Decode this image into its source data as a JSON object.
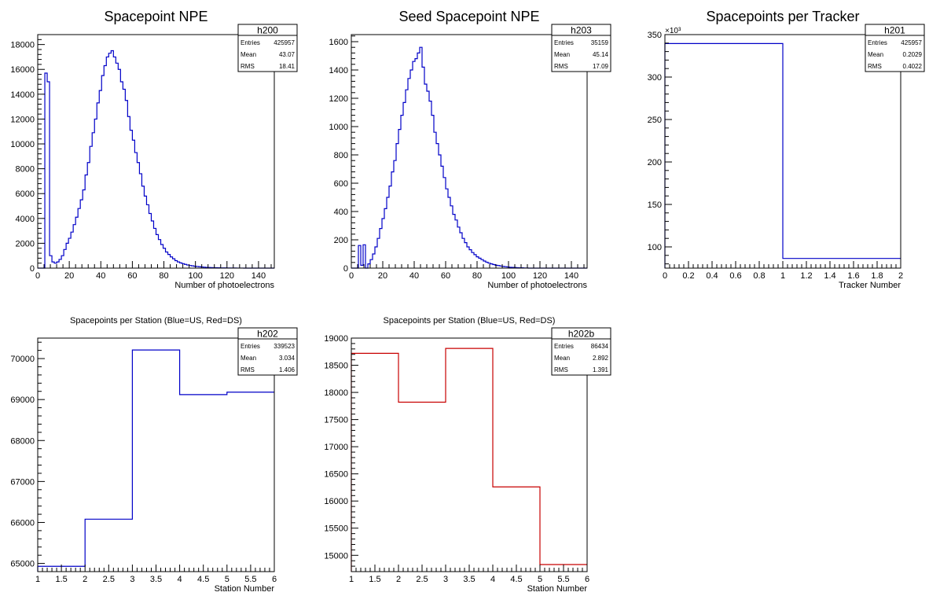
{
  "chart_data": [
    {
      "type": "histogram",
      "title": "Spacepoint NPE",
      "xlabel": "Number of photoelectrons",
      "ylabel": "",
      "xlim": [
        0,
        150
      ],
      "ylim": [
        0,
        18800
      ],
      "xticks": [
        0,
        20,
        40,
        60,
        80,
        100,
        120,
        140
      ],
      "yticks": [
        0,
        2000,
        4000,
        6000,
        8000,
        10000,
        12000,
        14000,
        16000,
        18000
      ],
      "line_color": "#0000c8",
      "bins": {
        "start": 0,
        "width": 1.5,
        "values": [
          0,
          0,
          0,
          15700,
          15000,
          1000,
          500,
          400,
          500,
          700,
          1000,
          1500,
          2000,
          2400,
          2900,
          3500,
          4100,
          4800,
          5500,
          6300,
          7500,
          8500,
          9800,
          10900,
          12000,
          13300,
          14300,
          15500,
          16300,
          17000,
          17300,
          17500,
          17000,
          16500,
          16000,
          15000,
          14400,
          13500,
          12200,
          11100,
          10300,
          9300,
          8500,
          7600,
          6600,
          5800,
          5100,
          4400,
          3800,
          3200,
          2700,
          2300,
          1900,
          1600,
          1300,
          1100,
          900,
          750,
          600,
          500,
          420,
          360,
          300,
          250,
          210,
          180,
          150,
          130,
          110,
          90,
          75,
          60,
          50,
          40,
          35,
          30,
          25,
          20,
          18,
          15,
          12,
          10,
          8,
          6,
          5,
          4,
          3,
          2,
          2,
          1,
          0,
          0,
          0,
          0,
          0,
          0,
          0,
          0,
          0,
          0
        ]
      },
      "stats": {
        "name": "h200",
        "rows": [
          {
            "label": "Entries",
            "value": "425957"
          },
          {
            "label": "Mean",
            "value": "43.07"
          },
          {
            "label": "RMS",
            "value": "18.41"
          }
        ]
      }
    },
    {
      "type": "histogram",
      "title": "Seed Spacepoint NPE",
      "xlabel": "Number of photoelectrons",
      "ylabel": "",
      "xlim": [
        0,
        150
      ],
      "ylim": [
        0,
        1650
      ],
      "xticks": [
        0,
        20,
        40,
        60,
        80,
        100,
        120,
        140
      ],
      "yticks": [
        0,
        200,
        400,
        600,
        800,
        1000,
        1200,
        1400,
        1600
      ],
      "line_color": "#0000c8",
      "bins": {
        "start": 0,
        "width": 1.5,
        "values": [
          0,
          0,
          0,
          160,
          20,
          165,
          0,
          30,
          60,
          100,
          150,
          210,
          280,
          350,
          420,
          500,
          580,
          680,
          760,
          880,
          980,
          1080,
          1170,
          1260,
          1340,
          1400,
          1460,
          1480,
          1520,
          1560,
          1420,
          1300,
          1250,
          1180,
          1080,
          960,
          880,
          800,
          720,
          640,
          560,
          500,
          440,
          380,
          340,
          290,
          250,
          210,
          180,
          150,
          130,
          110,
          95,
          80,
          70,
          60,
          50,
          42,
          35,
          30,
          25,
          20,
          18,
          15,
          12,
          10,
          8,
          6,
          5,
          4,
          3,
          2,
          2,
          1,
          1,
          0,
          0,
          0,
          0,
          0,
          0,
          0,
          0,
          0,
          0,
          0,
          0,
          0,
          0,
          0,
          0,
          0,
          0,
          0,
          0,
          0,
          0,
          0,
          0,
          0
        ]
      },
      "stats": {
        "name": "h203",
        "rows": [
          {
            "label": "Entries",
            "value": "35159"
          },
          {
            "label": "Mean",
            "value": "45.14"
          },
          {
            "label": "RMS",
            "value": "17.09"
          }
        ]
      }
    },
    {
      "type": "histogram",
      "title": "Spacepoints per Tracker",
      "xlabel": "Tracker Number",
      "ylabel": "",
      "exponent_label": "×10³",
      "xlim": [
        0,
        2
      ],
      "ylim": [
        75,
        350
      ],
      "y_display_scale": 1,
      "xticks": [
        0,
        0.2,
        0.4,
        0.6,
        0.8,
        1,
        1.2,
        1.4,
        1.6,
        1.8,
        2
      ],
      "yticks": [
        100,
        150,
        200,
        250,
        300,
        350
      ],
      "line_color": "#0000c8",
      "bins": {
        "start": 0,
        "width": 1,
        "values": [
          339.5,
          86.4
        ]
      },
      "stats": {
        "name": "h201",
        "rows": [
          {
            "label": "Entries",
            "value": "425957"
          },
          {
            "label": "Mean",
            "value": "0.2029"
          },
          {
            "label": "RMS",
            "value": "0.4022"
          }
        ]
      }
    },
    {
      "type": "histogram",
      "title": "Spacepoints per Station (Blue=US, Red=DS)",
      "xlabel": "Station Number",
      "ylabel": "",
      "xlim": [
        1,
        6
      ],
      "ylim": [
        64800,
        70500
      ],
      "xticks": [
        1,
        1.5,
        2,
        2.5,
        3,
        3.5,
        4,
        4.5,
        5,
        5.5,
        6
      ],
      "yticks": [
        65000,
        66000,
        67000,
        68000,
        69000,
        70000
      ],
      "line_color": "#0000c8",
      "bins": {
        "start": 1,
        "width": 1,
        "values": [
          64930,
          66080,
          70210,
          69120,
          69180
        ]
      },
      "stats": {
        "name": "h202",
        "rows": [
          {
            "label": "Entries",
            "value": "339523"
          },
          {
            "label": "Mean",
            "value": "3.034"
          },
          {
            "label": "RMS",
            "value": "1.406"
          }
        ]
      }
    },
    {
      "type": "histogram",
      "title": "Spacepoints per Station (Blue=US, Red=DS)",
      "xlabel": "Station Number",
      "ylabel": "",
      "xlim": [
        1,
        6
      ],
      "ylim": [
        14700,
        19000
      ],
      "xticks": [
        1,
        1.5,
        2,
        2.5,
        3,
        3.5,
        4,
        4.5,
        5,
        5.5,
        6
      ],
      "yticks": [
        15000,
        15500,
        16000,
        16500,
        17000,
        17500,
        18000,
        18500,
        19000
      ],
      "line_color": "#c80000",
      "bins": {
        "start": 1,
        "width": 1,
        "values": [
          18720,
          17820,
          18810,
          16260,
          14830
        ]
      },
      "stats": {
        "name": "h202b",
        "rows": [
          {
            "label": "Entries",
            "value": "86434"
          },
          {
            "label": "Mean",
            "value": "2.892"
          },
          {
            "label": "RMS",
            "value": "1.391"
          }
        ]
      }
    }
  ]
}
